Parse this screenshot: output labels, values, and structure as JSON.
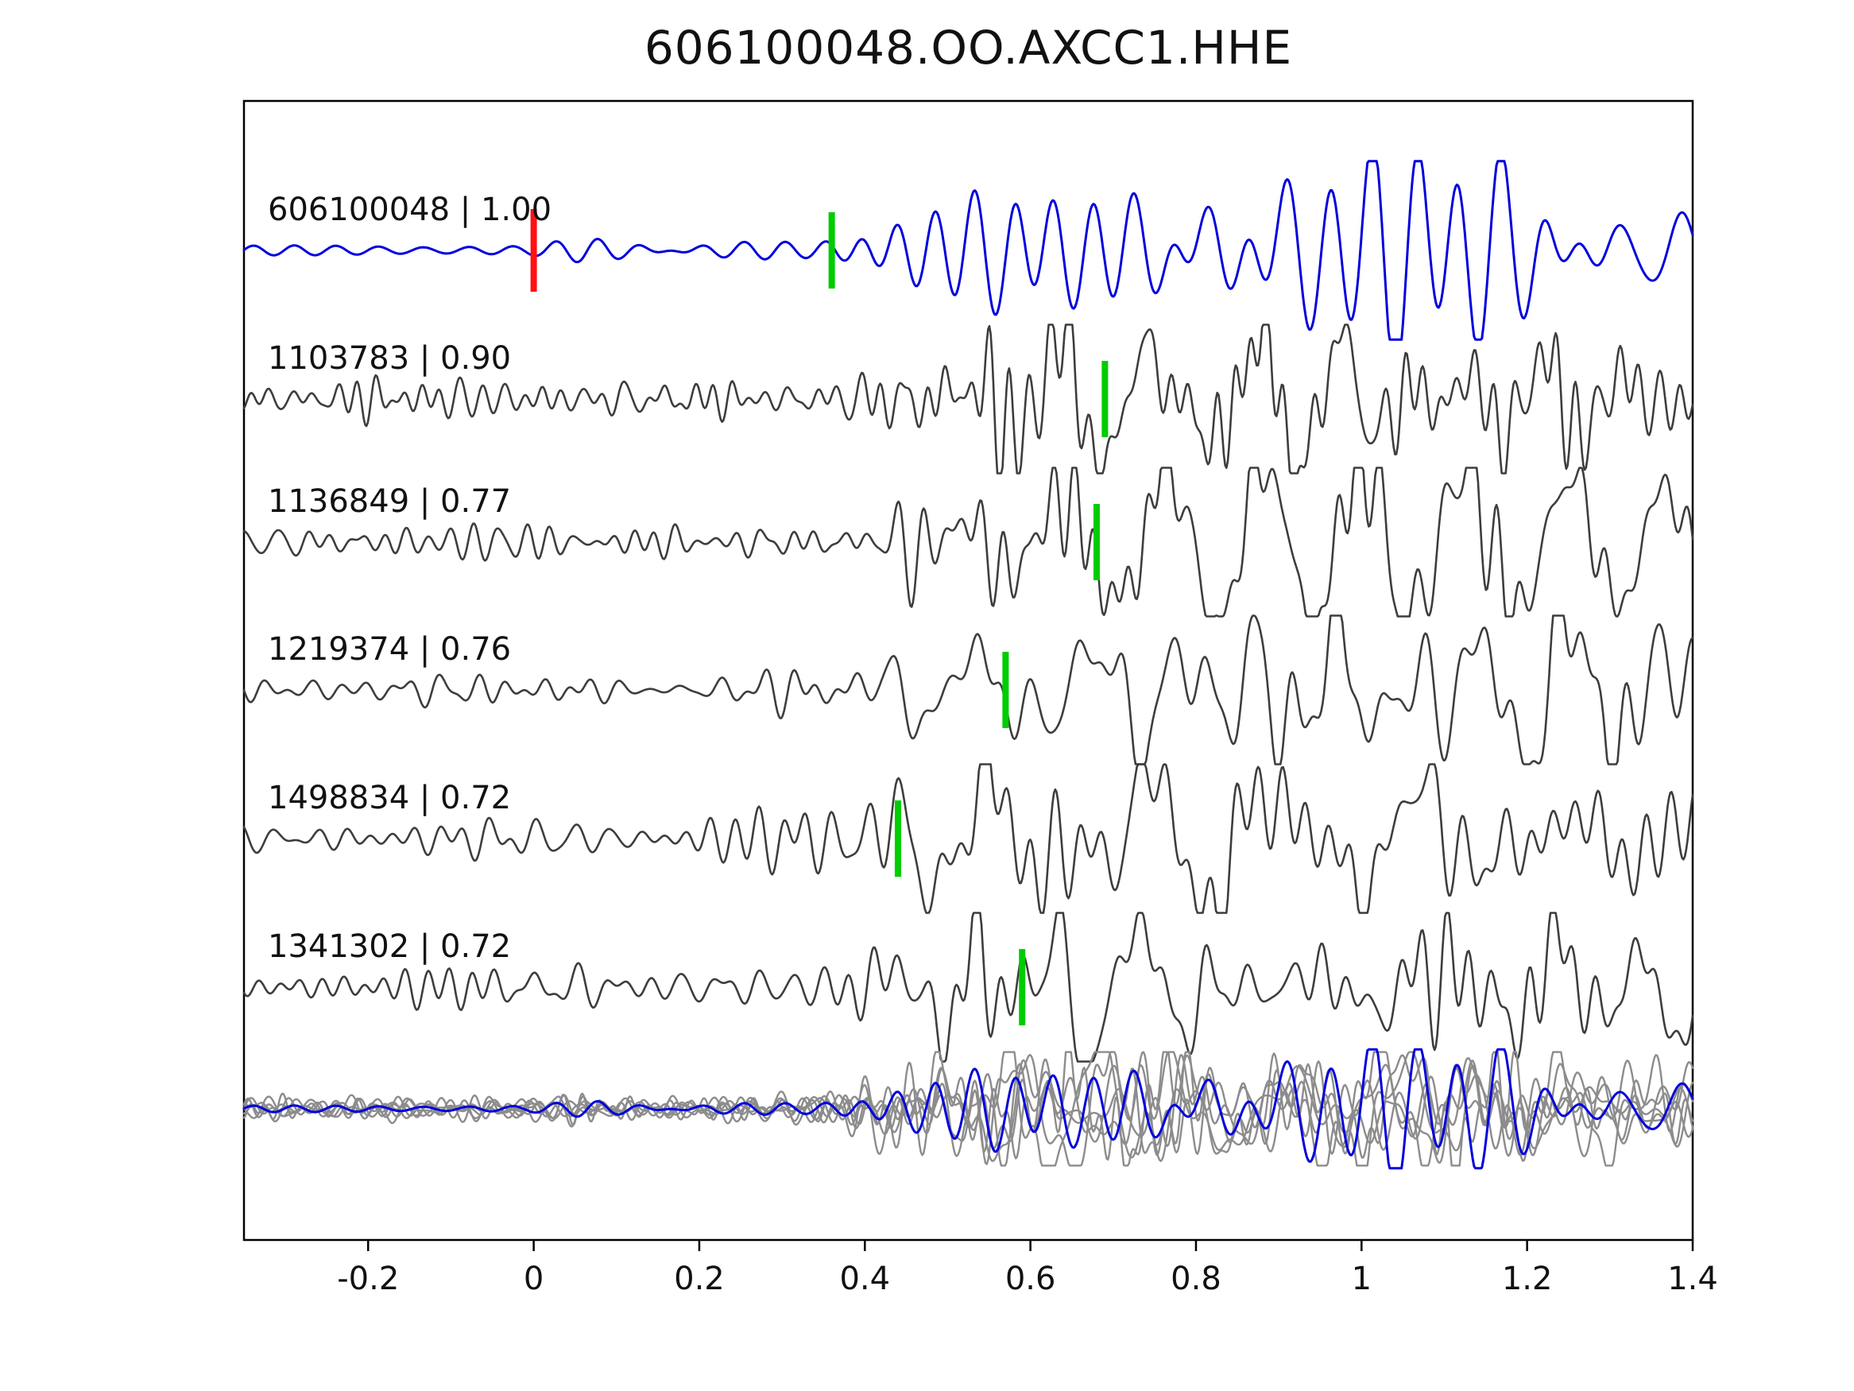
{
  "title": "606100048.OO.AXCC1.HHE",
  "chart_data": {
    "type": "line",
    "kind": "seismogram-template-matching",
    "title": "606100048.OO.AXCC1.HHE",
    "xlabel": "",
    "ylabel": "",
    "xlim": [
      -0.35,
      1.4
    ],
    "x_tick_values": [
      -0.2,
      0,
      0.2,
      0.4,
      0.6,
      0.8,
      1,
      1.2,
      1.4
    ],
    "x_tick_labels": [
      "-0.2",
      "0",
      "0.2",
      "0.4",
      "0.6",
      "0.8",
      "1",
      "1.2",
      "1.4"
    ],
    "grid": false,
    "legend": "none",
    "colors": {
      "reference_trace": "#0000dd",
      "matched_trace": "#3d3d3d",
      "overlay_gray": "#8c8c8c",
      "pick_marker": "#00cc00",
      "origin_marker": "#ff1111",
      "axis": "#000000"
    },
    "traces": [
      {
        "label": "606100048 | 1.00",
        "event_id": "606100048",
        "correlation": 1.0,
        "role": "reference",
        "color": "#0000dd",
        "origin_marker": {
          "x": 0.0,
          "color": "#ff1111"
        },
        "pick_marker": {
          "x": 0.36,
          "color": "#00cc00"
        }
      },
      {
        "label": "1103783 | 0.90",
        "event_id": "1103783",
        "correlation": 0.9,
        "role": "match",
        "color": "#3d3d3d",
        "pick_marker": {
          "x": 0.69,
          "color": "#00cc00"
        }
      },
      {
        "label": "1136849 | 0.77",
        "event_id": "1136849",
        "correlation": 0.77,
        "role": "match",
        "color": "#3d3d3d",
        "pick_marker": {
          "x": 0.68,
          "color": "#00cc00"
        }
      },
      {
        "label": "1219374 | 0.76",
        "event_id": "1219374",
        "correlation": 0.76,
        "role": "match",
        "color": "#3d3d3d",
        "pick_marker": {
          "x": 0.57,
          "color": "#00cc00"
        }
      },
      {
        "label": "1498834 | 0.72",
        "event_id": "1498834",
        "correlation": 0.72,
        "role": "match",
        "color": "#3d3d3d",
        "pick_marker": {
          "x": 0.44,
          "color": "#00cc00"
        }
      },
      {
        "label": "1341302 | 0.72",
        "event_id": "1341302",
        "correlation": 0.72,
        "role": "match",
        "color": "#3d3d3d",
        "pick_marker": {
          "x": 0.59,
          "color": "#00cc00"
        }
      }
    ],
    "overlay_row": {
      "description": "all matched waveforms overlaid in gray with reference waveform in blue",
      "gray_color": "#8c8c8c",
      "reference_color": "#0000dd"
    }
  }
}
